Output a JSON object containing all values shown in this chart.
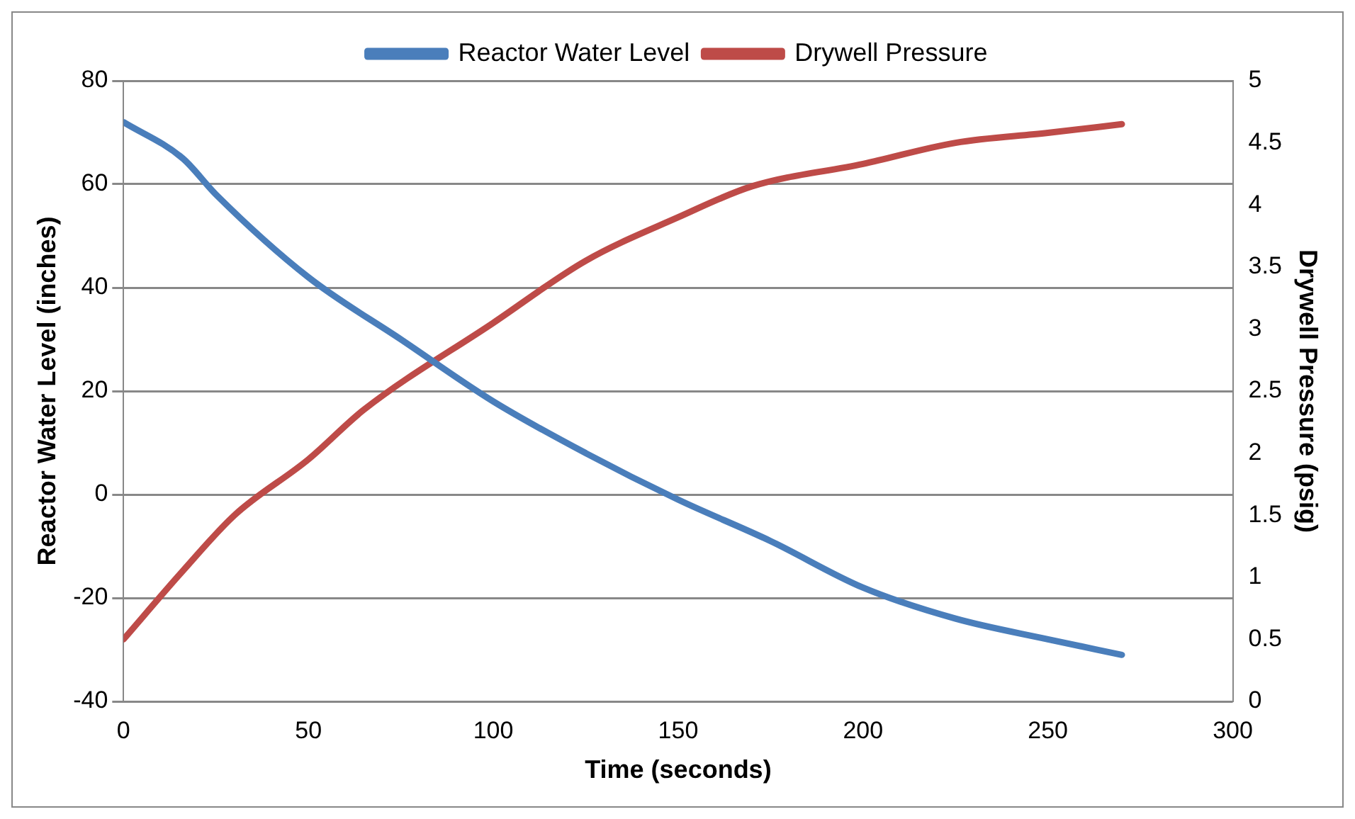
{
  "chart_data": {
    "type": "line",
    "xlabel": "Time (seconds)",
    "ylabel": "Reactor Water Level (inches)",
    "y2label": "Drywell Pressure (psig)",
    "xlim": [
      0,
      300
    ],
    "xticks": [
      0,
      50,
      100,
      150,
      200,
      250,
      300
    ],
    "ylim": [
      -40,
      80
    ],
    "yticks": [
      -40,
      -20,
      0,
      20,
      40,
      60,
      80
    ],
    "y2lim": [
      0,
      5
    ],
    "y2ticks": [
      0,
      0.5,
      1,
      1.5,
      2,
      2.5,
      3,
      3.5,
      4,
      4.5,
      5
    ],
    "grid": "y",
    "legend": "top",
    "marker": "none",
    "line_style": "solid",
    "series": [
      {
        "name": "Reactor Water Level",
        "color": "#4a7ebb",
        "x": [
          0,
          16,
          25,
          50,
          75,
          100,
          125,
          150,
          175,
          200,
          225,
          250,
          270
        ],
        "values": [
          72,
          65,
          58,
          42,
          30,
          18,
          8,
          -1,
          -9,
          -18,
          -24,
          -28,
          -31
        ]
      },
      {
        "name": "Drywell Pressure",
        "color": "#be4b48",
        "axis": "y2",
        "x": [
          0,
          16,
          30,
          50,
          65,
          100,
          125,
          150,
          170,
          200,
          225,
          250,
          270
        ],
        "values": [
          0.5,
          1.05,
          1.5,
          1.95,
          2.35,
          3.05,
          3.55,
          3.9,
          4.15,
          4.33,
          4.5,
          4.58,
          4.65
        ]
      }
    ]
  }
}
